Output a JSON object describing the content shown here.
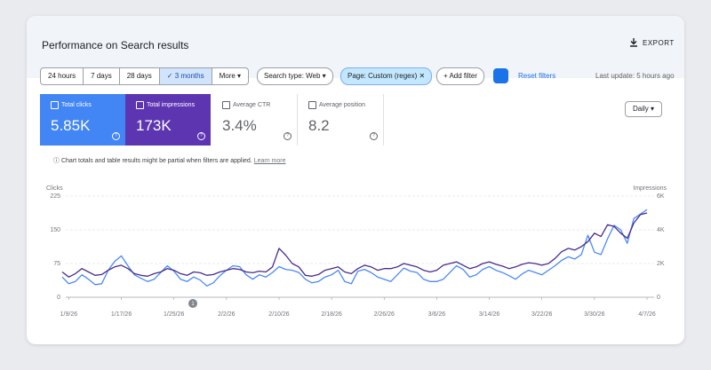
{
  "header": {
    "title": "Performance on Search results",
    "export": "EXPORT"
  },
  "filters": {
    "ranges": [
      "24 hours",
      "7 days",
      "28 days",
      "3 months",
      "More"
    ],
    "search_type": "Search type: Web",
    "page": "Page: Custom (regex)",
    "add_filter": "Add filter",
    "reset": "Reset filters",
    "last_update": "Last update: 5 hours ago"
  },
  "metrics": [
    {
      "label": "Total clicks",
      "value": "5.85K"
    },
    {
      "label": "Total impressions",
      "value": "173K"
    },
    {
      "label": "Average CTR",
      "value": "3.4%"
    },
    {
      "label": "Average position",
      "value": "8.2"
    }
  ],
  "granularity": "Daily",
  "notice": "Chart totals and table results might be partial when filters are applied.",
  "notice_link": "Learn more",
  "chart": {
    "type": "line",
    "y_label": "Clicks",
    "y2_label": "Impressions",
    "annotation": "1",
    "categories": [
      null,
      "1/9/26",
      null,
      null,
      null,
      null,
      null,
      null,
      null,
      "1/17/26",
      null,
      null,
      null,
      null,
      null,
      null,
      null,
      "1/25/26",
      null,
      null,
      null,
      null,
      null,
      null,
      null,
      "2/2/26",
      null,
      null,
      null,
      null,
      null,
      null,
      null,
      "2/10/26",
      null,
      null,
      null,
      null,
      null,
      null,
      null,
      "2/18/26",
      null,
      null,
      null,
      null,
      null,
      null,
      null,
      "2/26/26",
      null,
      null,
      null,
      null,
      null,
      null,
      null,
      "3/6/26",
      null,
      null,
      null,
      null,
      null,
      null,
      null,
      "3/14/26",
      null,
      null,
      null,
      null,
      null,
      null,
      null,
      "3/22/26",
      null,
      null,
      null,
      null,
      null,
      null,
      null,
      "3/30/26",
      null,
      null,
      null,
      null,
      null,
      null,
      null,
      "4/7/26"
    ],
    "series": [
      {
        "color": "#4a8af4",
        "values": [
          45,
          30,
          35,
          50,
          40,
          28,
          30,
          60,
          80,
          92,
          70,
          50,
          42,
          35,
          40,
          55,
          70,
          58,
          40,
          35,
          45,
          38,
          25,
          32,
          48,
          60,
          70,
          68,
          50,
          40,
          50,
          45,
          55,
          68,
          62,
          60,
          55,
          40,
          32,
          35,
          45,
          50,
          60,
          35,
          30,
          58,
          62,
          55,
          45,
          40,
          35,
          50,
          65,
          58,
          55,
          40,
          35,
          35,
          40,
          55,
          70,
          62,
          45,
          50,
          62,
          68,
          60,
          55,
          48,
          40,
          52,
          60,
          55,
          50,
          60,
          70,
          82,
          90,
          85,
          95,
          138,
          100,
          95,
          130,
          160,
          150,
          120,
          175,
          185,
          195
        ]
      },
      {
        "color": "#4a2c8c",
        "axis": "y2",
        "values": [
          1500,
          1200,
          1400,
          1700,
          1500,
          1300,
          1350,
          1600,
          1800,
          1900,
          1700,
          1400,
          1300,
          1250,
          1400,
          1500,
          1700,
          1600,
          1400,
          1300,
          1500,
          1450,
          1300,
          1350,
          1500,
          1600,
          1700,
          1650,
          1500,
          1450,
          1550,
          1500,
          1800,
          2900,
          2500,
          2000,
          1800,
          1300,
          1250,
          1350,
          1600,
          1700,
          1800,
          1500,
          1400,
          1700,
          1900,
          1800,
          1600,
          1700,
          1700,
          1800,
          2000,
          1900,
          1800,
          1600,
          1500,
          1600,
          1900,
          2000,
          2100,
          1900,
          1700,
          1800,
          2000,
          2100,
          1950,
          1850,
          1700,
          1800,
          1950,
          2050,
          2000,
          1900,
          2000,
          2300,
          2700,
          2900,
          2800,
          3000,
          3300,
          3800,
          3600,
          4300,
          4200,
          3800,
          3500,
          4400,
          4900,
          5000
        ]
      }
    ],
    "ylim": [
      0,
      225
    ],
    "yticks": [
      0,
      75,
      150,
      225
    ],
    "y2lim": [
      0,
      6000
    ],
    "y2ticks": [
      0,
      {
        "value": 2000,
        "label": "2K"
      },
      {
        "value": 4000,
        "label": "4K"
      },
      {
        "value": 6000,
        "label": "6K"
      }
    ],
    "grid": true
  }
}
